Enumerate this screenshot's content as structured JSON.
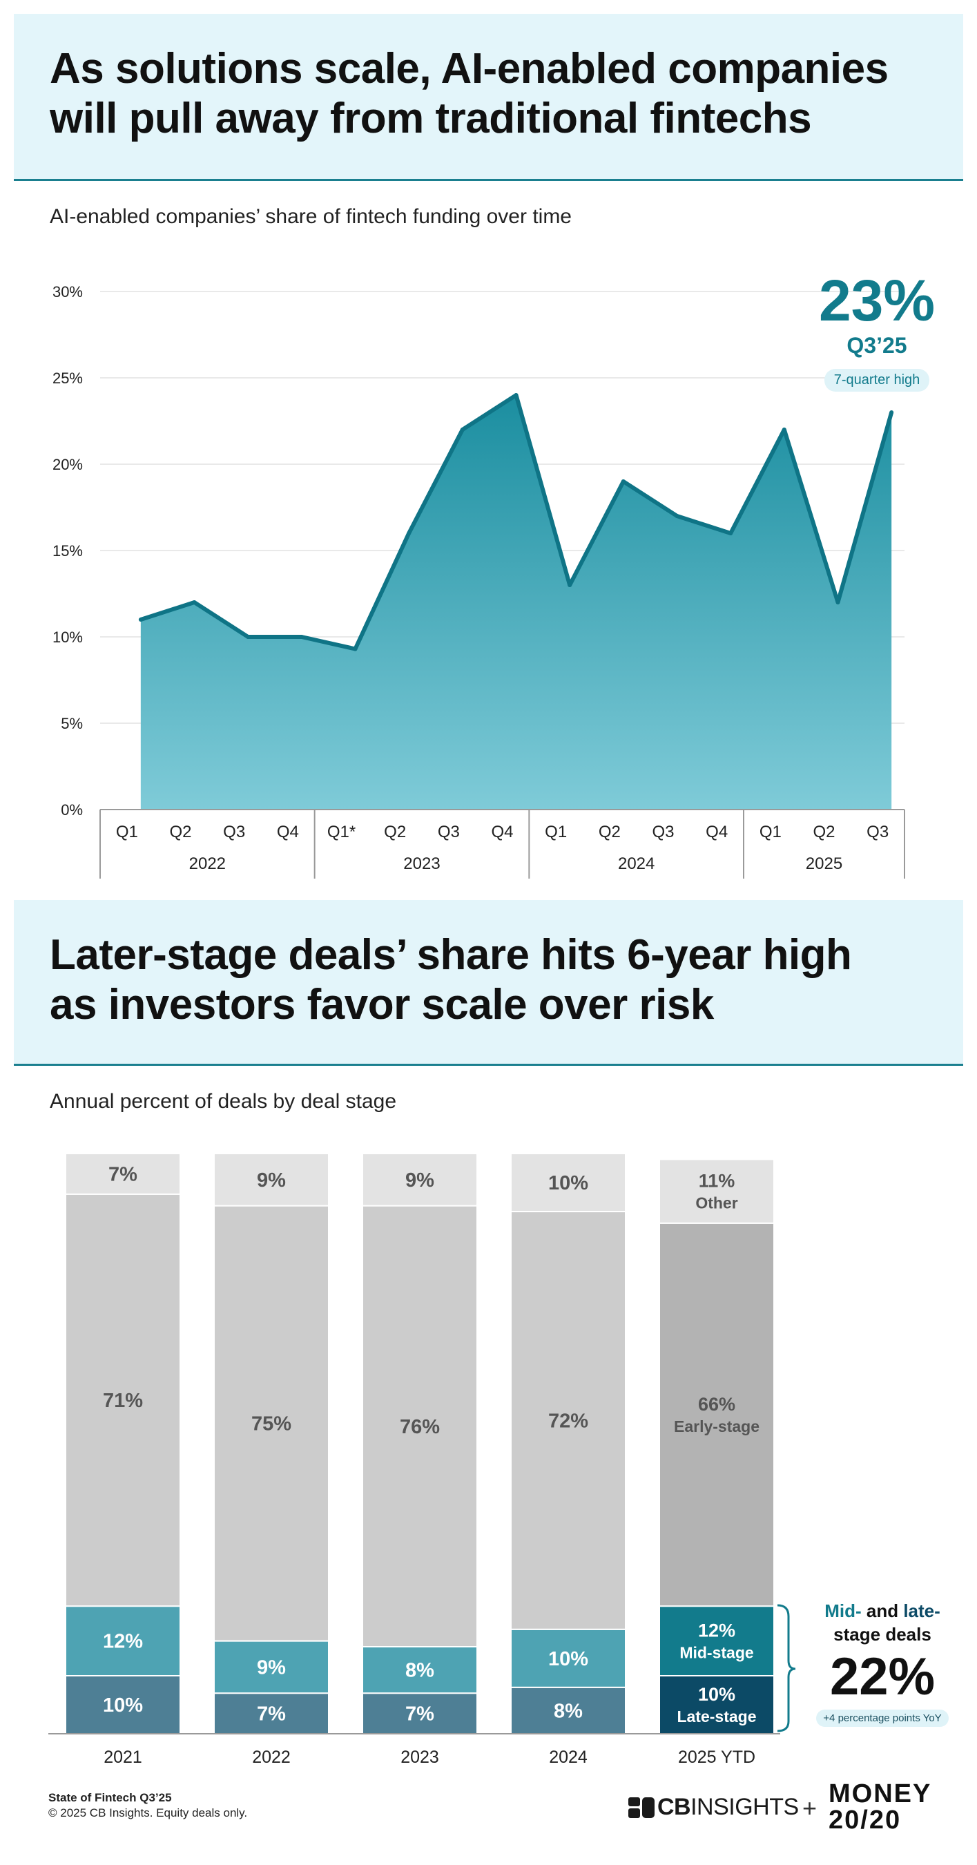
{
  "section1": {
    "title_line1": "As solutions scale, AI-enabled companies",
    "title_line2": "will pull away from traditional fintechs",
    "subtitle": "AI-enabled companies’ share of fintech funding over time",
    "callout": {
      "value": "23%",
      "period": "Q3’25",
      "badge": "7-quarter high"
    }
  },
  "section2": {
    "title_line1": "Later-stage deals’ share hits 6-year high",
    "title_line2": "as investors favor scale over risk",
    "subtitle": "Annual percent of deals by deal stage",
    "callout": {
      "heading_mid": "Mid-",
      "heading_and": " and ",
      "heading_late": "late-",
      "heading_line2": "stage deals",
      "value": "22%",
      "note": "+4 percentage points YoY"
    }
  },
  "footer": {
    "report": "State of Fintech Q3’25",
    "copyright": "© 2025 CB Insights. Equity deals only.",
    "logo_cb_bold": "CB",
    "logo_cb_light": "INSIGHTS",
    "plus": "+",
    "money_line1": "MONEY",
    "money_line2": "20/20"
  },
  "colors": {
    "accent": "#127b8c",
    "area_top": "#1b8ea0",
    "area_bottom": "#7fcbd8",
    "other": "#e3e3e3",
    "early": "#cccccc",
    "early_highlight": "#b3b3b3",
    "mid": "#4ea3b3",
    "late": "#4e7f95",
    "mid_highlight": "#127b8c",
    "late_highlight": "#0c4a66"
  },
  "chart_data": [
    {
      "type": "area",
      "title": "AI-enabled companies’ share of fintech funding over time",
      "categories": [
        "Q1",
        "Q2",
        "Q3",
        "Q4",
        "Q1*",
        "Q2",
        "Q3",
        "Q4",
        "Q1",
        "Q2",
        "Q3",
        "Q4",
        "Q1",
        "Q2",
        "Q3"
      ],
      "groups": [
        {
          "label": "2022",
          "count": 4
        },
        {
          "label": "2023",
          "count": 4
        },
        {
          "label": "2024",
          "count": 4
        },
        {
          "label": "2025",
          "count": 3
        }
      ],
      "values": [
        11,
        12,
        10,
        10,
        9.3,
        16,
        22,
        24,
        13,
        19,
        17,
        16,
        22,
        12,
        23
      ],
      "ylim": [
        0,
        30
      ],
      "yticks": [
        0,
        5,
        10,
        15,
        20,
        25,
        30
      ],
      "ytick_labels": [
        "0%",
        "5%",
        "10%",
        "15%",
        "20%",
        "25%",
        "30%"
      ],
      "grid": true
    },
    {
      "type": "stacked-bar",
      "title": "Annual percent of deals by deal stage",
      "categories": [
        "2021",
        "2022",
        "2023",
        "2024",
        "2025 YTD"
      ],
      "series": [
        {
          "name": "Late-stage",
          "values": [
            10,
            7,
            7,
            8,
            10
          ],
          "labels": [
            "10%",
            "7%",
            "7%",
            "8%",
            "10%"
          ]
        },
        {
          "name": "Mid-stage",
          "values": [
            12,
            9,
            8,
            10,
            12
          ],
          "labels": [
            "12%",
            "9%",
            "8%",
            "10%",
            "12%"
          ]
        },
        {
          "name": "Early-stage",
          "values": [
            71,
            75,
            76,
            72,
            66
          ],
          "labels": [
            "71%",
            "75%",
            "76%",
            "72%",
            "66%"
          ]
        },
        {
          "name": "Other",
          "values": [
            7,
            9,
            9,
            10,
            11
          ],
          "labels": [
            "7%",
            "9%",
            "9%",
            "10%",
            "11%"
          ]
        }
      ],
      "highlight_category": "2025 YTD",
      "segment_names_shown_on_highlight": [
        "Late-stage",
        "Mid-stage",
        "Early-stage",
        "Other"
      ]
    }
  ]
}
